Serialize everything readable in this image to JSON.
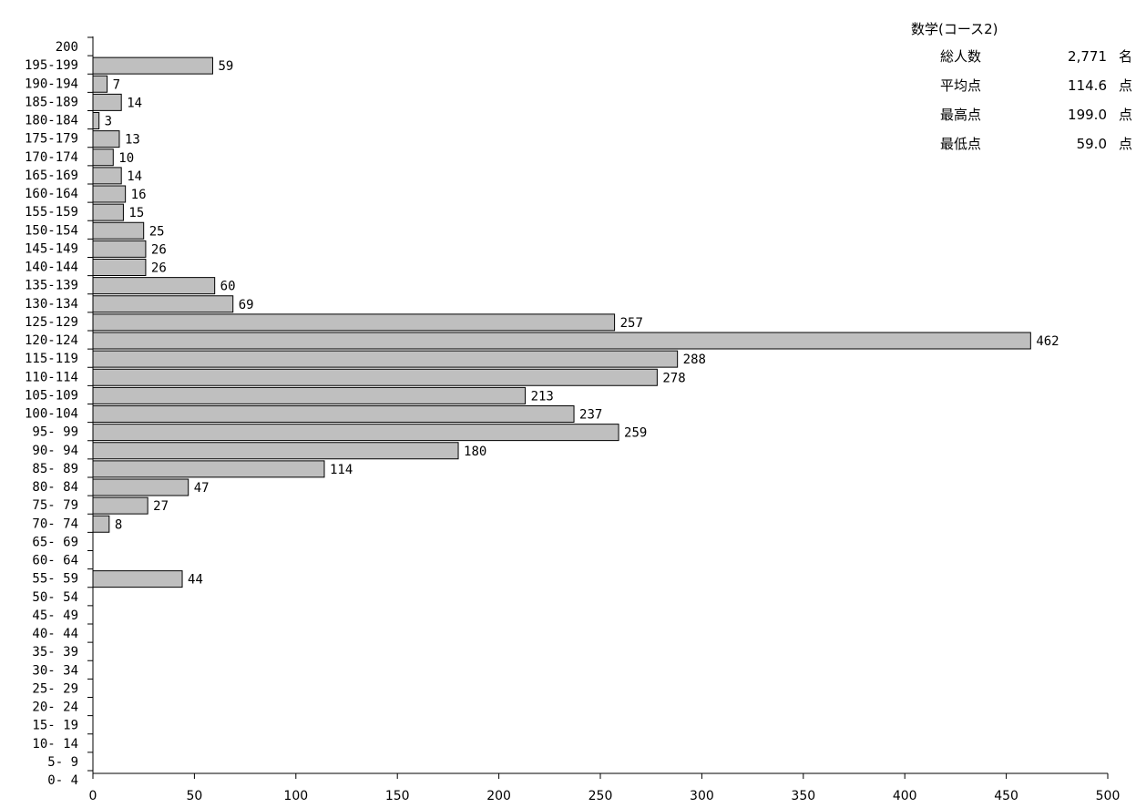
{
  "stats": {
    "title": "数学(コース2)",
    "rows": [
      {
        "label": "総人数",
        "value": "2,771",
        "unit": "名"
      },
      {
        "label": "平均点",
        "value": "114.6",
        "unit": "点"
      },
      {
        "label": "最高点",
        "value": "199.0",
        "unit": "点"
      },
      {
        "label": "最低点",
        "value": "59.0",
        "unit": "点"
      }
    ]
  },
  "chart_data": {
    "type": "bar",
    "orientation": "horizontal",
    "title": "",
    "xlabel": "",
    "ylabel": "",
    "xlim": [
      0,
      500
    ],
    "x_ticks": [
      "0",
      "50",
      "100",
      "150",
      "200",
      "250",
      "300",
      "350",
      "400",
      "450",
      "500"
    ],
    "bar_color": "#bfbfbf",
    "grid": false,
    "categories": [
      "200",
      "195-199",
      "190-194",
      "185-189",
      "180-184",
      "175-179",
      "170-174",
      "165-169",
      "160-164",
      "155-159",
      "150-154",
      "145-149",
      "140-144",
      "135-139",
      "130-134",
      "125-129",
      "120-124",
      "115-119",
      "110-114",
      "105-109",
      "100-104",
      "95- 99",
      "90- 94",
      "85- 89",
      "80- 84",
      "75- 79",
      "70- 74",
      "65- 69",
      "60- 64",
      "55- 59",
      "50- 54",
      "45- 49",
      "40- 44",
      "35- 39",
      "30- 34",
      "25- 29",
      "20- 24",
      "15- 19",
      "10- 14",
      "5- 9",
      "0- 4"
    ],
    "values": [
      null,
      59,
      7,
      14,
      3,
      13,
      10,
      14,
      16,
      15,
      25,
      26,
      26,
      60,
      69,
      257,
      462,
      288,
      278,
      213,
      237,
      259,
      180,
      114,
      47,
      27,
      8,
      null,
      null,
      44,
      null,
      null,
      null,
      null,
      null,
      null,
      null,
      null,
      null,
      null,
      null
    ]
  }
}
